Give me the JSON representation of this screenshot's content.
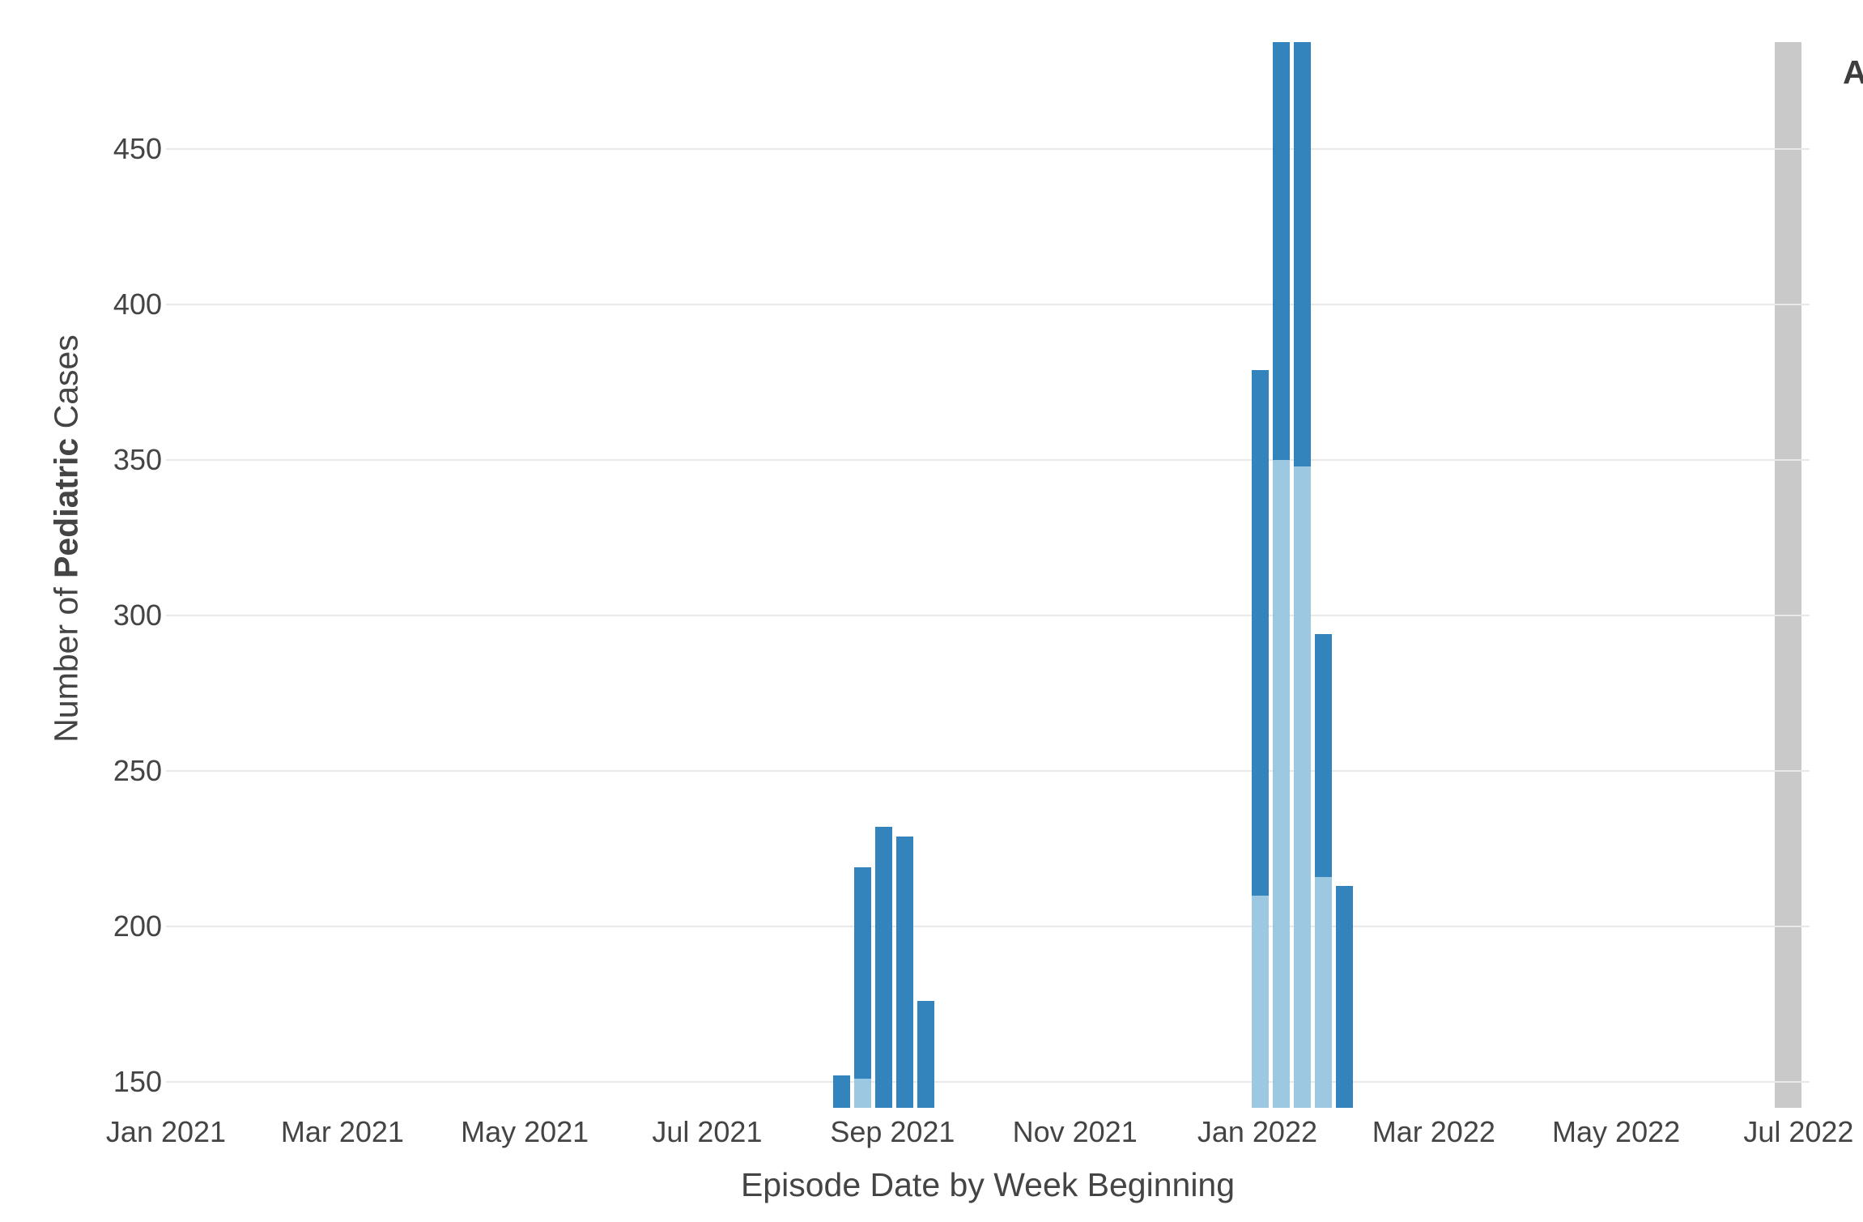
{
  "chart_data": {
    "type": "bar",
    "stacked": true,
    "title": "",
    "xlabel": "Episode Date by Week Beginning",
    "ylabel": "Number of Pediatric Cases",
    "ylabel_prefix": "Number of ",
    "ylabel_bold": "Pediatric",
    "ylabel_suffix": " Cases",
    "legend_title_visible": "A",
    "legend_position": "top-right (clipped at image edge)",
    "grid": true,
    "y_ticks": [
      150,
      200,
      250,
      300,
      350,
      400,
      450
    ],
    "ylim_visible": [
      141.7,
      484.6
    ],
    "x_tick_labels": [
      "Jan 2021",
      "Mar 2021",
      "May 2021",
      "Jul 2021",
      "Sep 2021",
      "Nov 2021",
      "Jan 2022",
      "Mar 2022",
      "May 2022",
      "Jul 2022"
    ],
    "x_tick_dates": [
      "2021-01-01",
      "2021-03-01",
      "2021-05-01",
      "2021-07-01",
      "2021-09-01",
      "2021-11-01",
      "2022-01-01",
      "2022-03-01",
      "2022-05-01",
      "2022-07-01"
    ],
    "xlim_visible": [
      "2020-12-31",
      "2022-07-03"
    ],
    "colors": {
      "dark_blue": "#3384bd",
      "light_blue": "#9dc8e1",
      "gray_band": "#c9c9c9",
      "grid": "#e9e9e9",
      "text": "#444444"
    },
    "series": [
      {
        "name": "lower-stack-segment",
        "color_key": "light_blue"
      },
      {
        "name": "upper-stack-segment",
        "color_key": "dark_blue"
      }
    ],
    "bars": [
      {
        "week": "2021-08-15",
        "total": 152,
        "light_top": null,
        "clipped_top": false
      },
      {
        "week": "2021-08-22",
        "total": 219,
        "light_top": 151,
        "clipped_top": false
      },
      {
        "week": "2021-08-29",
        "total": 232,
        "light_top": null,
        "clipped_top": false
      },
      {
        "week": "2021-09-05",
        "total": 229,
        "light_top": null,
        "clipped_top": false
      },
      {
        "week": "2021-09-12",
        "total": 176,
        "light_top": null,
        "clipped_top": false
      },
      {
        "week": "2022-01-02",
        "total": 379,
        "light_top": 210,
        "clipped_top": false
      },
      {
        "week": "2022-01-09",
        "total": 485,
        "light_top": 350,
        "clipped_top": true
      },
      {
        "week": "2022-01-16",
        "total": 485,
        "light_top": 348,
        "clipped_top": true
      },
      {
        "week": "2022-01-23",
        "total": 294,
        "light_top": 216,
        "clipped_top": false
      },
      {
        "week": "2022-01-30",
        "total": 213,
        "light_top": null,
        "clipped_top": false
      }
    ],
    "gray_band": {
      "from": "2022-06-23",
      "to": "2022-07-02",
      "full_height": true
    }
  }
}
